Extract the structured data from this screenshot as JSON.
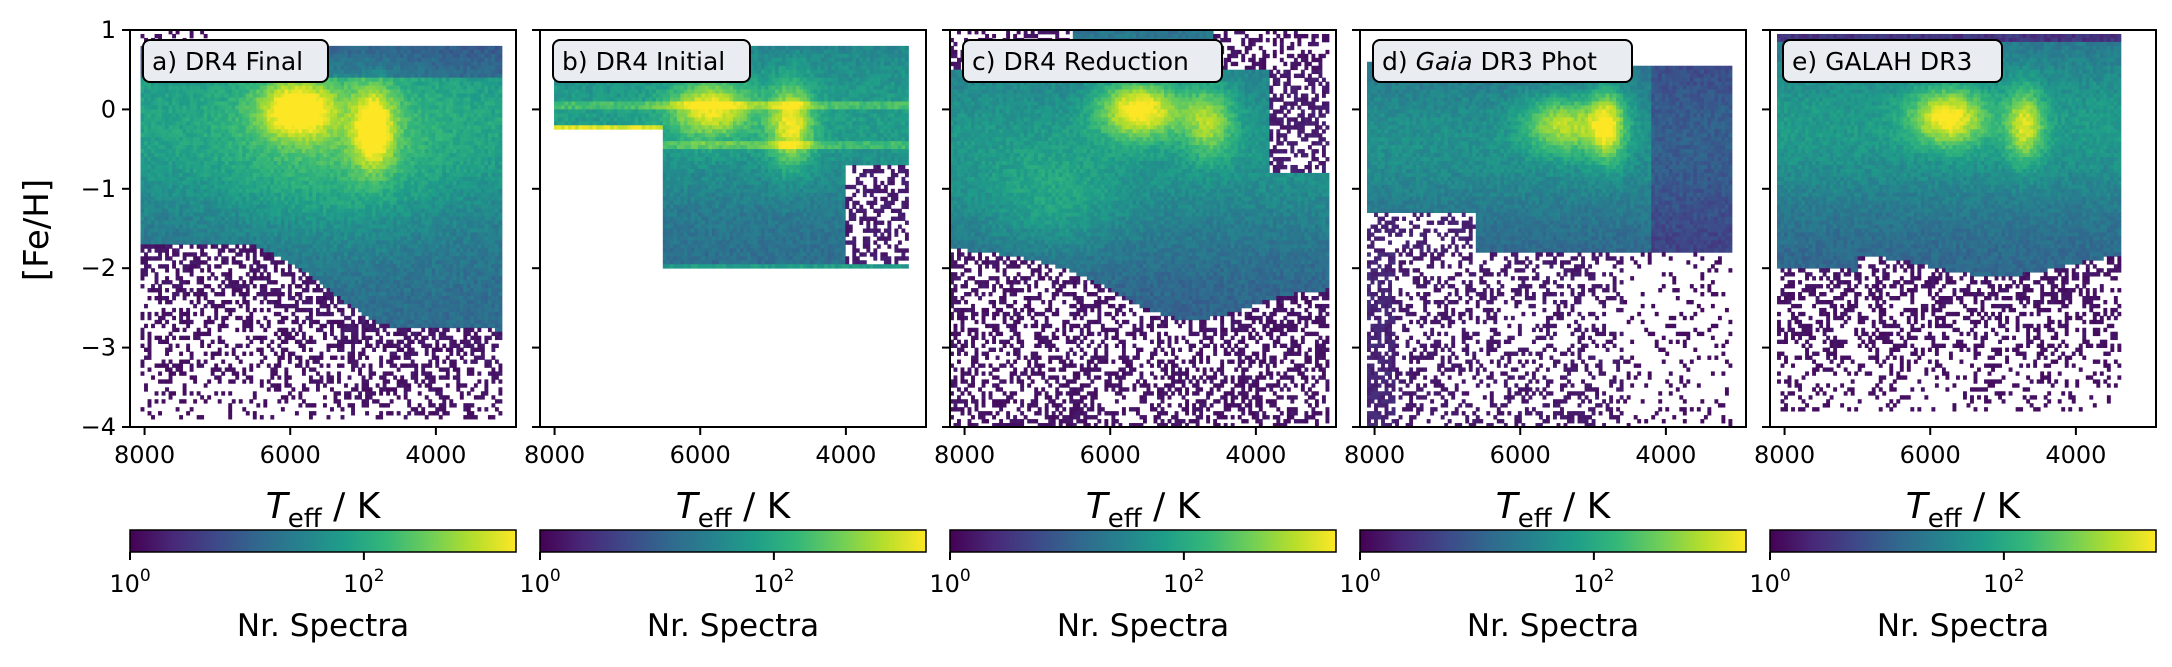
{
  "figure": {
    "ylabel": "[Fe/H]",
    "xlabel": "T_eff / K",
    "colorbar_label": "Nr. Spectra",
    "colormap": "viridis",
    "colorbar_scale": "log",
    "colorbar_ticks": [
      "10^0",
      "10^2"
    ],
    "colorbar_range": [
      1,
      2000
    ]
  },
  "colors": {
    "viridis": [
      "#440154",
      "#482878",
      "#3e4989",
      "#31688e",
      "#26828e",
      "#1f9e89",
      "#35b779",
      "#6ece58",
      "#b5de2b",
      "#fde725"
    ]
  },
  "chart_data": [
    {
      "type": "heatmap",
      "panel_label": "a) DR4 Final",
      "xlabel": "T_eff / K",
      "ylabel": "[Fe/H]",
      "xlim": [
        8200,
        2900
      ],
      "ylim": [
        -4,
        1
      ],
      "xticks": [
        8000,
        6000,
        4000
      ],
      "yticks": [
        1,
        0,
        -1,
        -2,
        -3,
        -4
      ],
      "peaks": [
        {
          "teff": 5800,
          "feh": 0.0
        },
        {
          "teff": 4800,
          "feh": -0.2
        }
      ],
      "coverage": {
        "teff_range": [
          8000,
          3100
        ],
        "feh_range": [
          -3.9,
          1.0
        ]
      }
    },
    {
      "type": "heatmap",
      "panel_label": "b) DR4 Initial",
      "xlabel": "T_eff / K",
      "xlim": [
        8200,
        2900
      ],
      "ylim": [
        -4,
        1
      ],
      "xticks": [
        8000,
        6000,
        4000
      ],
      "peaks": [
        {
          "teff": 5800,
          "feh": 0.0
        },
        {
          "teff": 4800,
          "feh": -0.2
        }
      ],
      "coverage": {
        "teff_range": [
          8000,
          3100
        ],
        "feh_range": [
          -2.0,
          0.8
        ]
      }
    },
    {
      "type": "heatmap",
      "panel_label": "c) DR4 Reduction",
      "xlabel": "T_eff / K",
      "xlim": [
        8200,
        2900
      ],
      "ylim": [
        -4,
        1
      ],
      "xticks": [
        8000,
        6000,
        4000
      ],
      "peaks": [
        {
          "teff": 5600,
          "feh": 0.0
        },
        {
          "teff": 4700,
          "feh": -0.1
        }
      ],
      "coverage": {
        "teff_range": [
          8200,
          3000
        ],
        "feh_range": [
          -4.0,
          1.0
        ]
      }
    },
    {
      "type": "heatmap",
      "panel_label_parts": [
        "d) ",
        "Gaia",
        " DR3 Phot"
      ],
      "xlabel": "T_eff / K",
      "xlim": [
        8200,
        2900
      ],
      "ylim": [
        -4,
        1
      ],
      "xticks": [
        8000,
        6000,
        4000
      ],
      "peaks": [
        {
          "teff": 5400,
          "feh": -0.2
        },
        {
          "teff": 4800,
          "feh": -0.2
        }
      ],
      "coverage": {
        "teff_range": [
          8100,
          3100
        ],
        "feh_range": [
          -4.0,
          0.8
        ]
      }
    },
    {
      "type": "heatmap",
      "panel_label": "e) GALAH DR3",
      "xlabel": "T_eff / K",
      "xlim": [
        8200,
        2900
      ],
      "ylim": [
        -4,
        1
      ],
      "xticks": [
        8000,
        6000,
        4000
      ],
      "peaks": [
        {
          "teff": 5700,
          "feh": -0.1
        },
        {
          "teff": 4700,
          "feh": -0.2
        }
      ],
      "coverage": {
        "teff_range": [
          8100,
          3400
        ],
        "feh_range": [
          -3.9,
          1.0
        ]
      }
    }
  ]
}
